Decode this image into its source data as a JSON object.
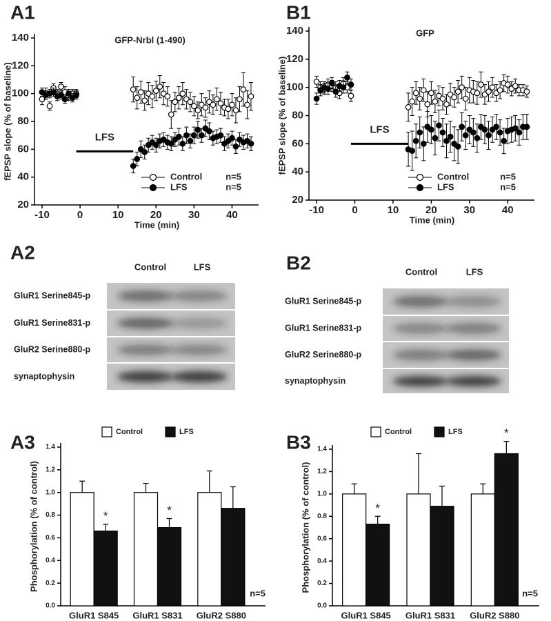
{
  "chart_data": [
    {
      "type": "scatter",
      "panel": "A1",
      "title": "GFP-Nrbl (1-490)",
      "x_label": "Time (min)",
      "y_label": "fEPSP slope (% of baseline)",
      "x": [
        -10,
        -9,
        -8,
        -7,
        -6,
        -5,
        -4,
        -3,
        -2,
        -1,
        14,
        15,
        16,
        17,
        18,
        19,
        20,
        21,
        22,
        23,
        24,
        25,
        26,
        27,
        28,
        29,
        30,
        31,
        32,
        33,
        34,
        35,
        36,
        37,
        38,
        39,
        40,
        41,
        42,
        43,
        44,
        45
      ],
      "series": [
        {
          "name": "Control",
          "n_label": "n=5",
          "color": "#ffffff",
          "values": [
            96,
            100,
            91,
            104,
            100,
            105,
            101,
            98,
            100,
            100,
            103,
            97,
            101,
            95,
            100,
            98,
            102,
            105,
            100,
            98,
            85,
            94,
            97,
            100,
            96,
            94,
            91,
            88,
            92,
            90,
            94,
            92,
            96,
            93,
            90,
            89,
            92,
            88,
            96,
            103,
            92,
            98
          ],
          "errors": [
            4,
            4,
            3,
            3,
            3,
            3,
            4,
            3,
            3,
            3,
            9,
            8,
            8,
            7,
            8,
            8,
            7,
            8,
            8,
            7,
            10,
            7,
            8,
            8,
            7,
            7,
            7,
            6,
            8,
            7,
            8,
            7,
            8,
            8,
            6,
            7,
            8,
            9,
            9,
            12,
            10,
            10
          ]
        },
        {
          "name": "LFS",
          "n_label": "n=5",
          "color": "#000000",
          "values": [
            101,
            99,
            100,
            101,
            98,
            99,
            96,
            100,
            97,
            99,
            48,
            53,
            60,
            58,
            63,
            65,
            63,
            66,
            67,
            65,
            64,
            67,
            69,
            64,
            70,
            66,
            70,
            74,
            70,
            75,
            73,
            68,
            69,
            70,
            64,
            66,
            68,
            62,
            67,
            65,
            66,
            64
          ],
          "errors": [
            3,
            3,
            3,
            3,
            3,
            3,
            3,
            3,
            3,
            3,
            5,
            5,
            6,
            5,
            5,
            5,
            5,
            5,
            5,
            5,
            5,
            5,
            6,
            5,
            6,
            5,
            6,
            6,
            5,
            6,
            6,
            5,
            5,
            5,
            5,
            5,
            5,
            5,
            5,
            5,
            5,
            5
          ]
        }
      ],
      "annotation": {
        "text": "LFS",
        "x0": -1,
        "x1": 14,
        "y": 58.5
      },
      "xlim": [
        -12,
        47
      ],
      "xticks": [
        -10,
        0,
        10,
        20,
        30,
        40
      ],
      "ylim": [
        20,
        140
      ],
      "yticks": [
        20,
        40,
        60,
        80,
        100,
        120,
        140
      ]
    },
    {
      "type": "scatter",
      "panel": "B1",
      "title": "GFP",
      "x_label": "Time (min)",
      "y_label": "fEPSP slope (% of baseline)",
      "x": [
        -10,
        -9,
        -8,
        -7,
        -6,
        -5,
        -4,
        -3,
        -2,
        -1,
        14,
        15,
        16,
        17,
        18,
        19,
        20,
        21,
        22,
        23,
        24,
        25,
        26,
        27,
        28,
        29,
        30,
        31,
        32,
        33,
        34,
        35,
        36,
        37,
        38,
        39,
        40,
        41,
        42,
        43,
        44,
        45
      ],
      "series": [
        {
          "name": "Control",
          "n_label": "n=5",
          "color": "#ffffff",
          "values": [
            104,
            100,
            99,
            102,
            101,
            100,
            96,
            103,
            100,
            94,
            86,
            90,
            96,
            92,
            98,
            88,
            96,
            90,
            94,
            92,
            88,
            95,
            93,
            97,
            100,
            92,
            98,
            97,
            96,
            102,
            95,
            97,
            100,
            96,
            98,
            103,
            102,
            99,
            101,
            98,
            98,
            97
          ],
          "errors": [
            4,
            4,
            4,
            4,
            4,
            4,
            4,
            4,
            4,
            4,
            10,
            10,
            8,
            8,
            8,
            9,
            8,
            8,
            7,
            8,
            7,
            8,
            7,
            8,
            8,
            8,
            9,
            8,
            8,
            9,
            7,
            7,
            7,
            6,
            6,
            6,
            6,
            5,
            5,
            4,
            4,
            4
          ]
        },
        {
          "name": "LFS",
          "n_label": "n=5",
          "color": "#000000",
          "values": [
            92,
            98,
            100,
            99,
            103,
            97,
            101,
            100,
            107,
            102,
            56,
            55,
            62,
            68,
            60,
            72,
            70,
            64,
            73,
            68,
            62,
            65,
            60,
            58,
            72,
            66,
            70,
            68,
            64,
            72,
            70,
            66,
            70,
            72,
            68,
            62,
            69,
            70,
            71,
            68,
            72,
            72
          ],
          "errors": [
            4,
            4,
            4,
            4,
            4,
            4,
            4,
            4,
            4,
            4,
            12,
            14,
            12,
            11,
            12,
            11,
            10,
            12,
            11,
            10,
            12,
            11,
            12,
            12,
            10,
            10,
            10,
            10,
            10,
            9,
            10,
            10,
            9,
            9,
            9,
            9,
            9,
            9,
            9,
            9,
            9,
            9
          ]
        }
      ],
      "annotation": {
        "text": "LFS",
        "x0": -1,
        "x1": 14,
        "y": 60
      },
      "xlim": [
        -12,
        47
      ],
      "xticks": [
        -10,
        0,
        10,
        20,
        30,
        40
      ],
      "ylim": [
        20,
        140
      ],
      "yticks": [
        20,
        40,
        60,
        80,
        100,
        120,
        140
      ]
    },
    {
      "type": "bar",
      "panel": "A3",
      "y_label": "Phosphorylation (% of control)",
      "note": "n=5",
      "categories": [
        "GluR1 S845",
        "GluR1 S831",
        "GluR2 S880"
      ],
      "series": [
        {
          "name": "Control",
          "color": "#ffffff",
          "values": [
            1.0,
            1.0,
            1.0
          ],
          "errors": [
            0.1,
            0.08,
            0.19
          ],
          "significance": [
            null,
            null,
            null
          ]
        },
        {
          "name": "LFS",
          "color": "#111111",
          "values": [
            0.66,
            0.69,
            0.86
          ],
          "errors": [
            0.06,
            0.08,
            0.19
          ],
          "significance": [
            "*",
            "*",
            null
          ]
        }
      ],
      "ylim": [
        0,
        1.4
      ],
      "yticks": [
        {
          "value": 0,
          "label": "0.0"
        },
        0.2,
        0.4,
        0.6,
        0.8,
        {
          "value": 1,
          "label": "1.0"
        },
        1.2,
        1.4
      ]
    },
    {
      "type": "bar",
      "panel": "B3",
      "y_label": "Phosphorylation (% of control)",
      "note": "n=5",
      "categories": [
        "GluR1 S845",
        "GluR1 S831",
        "GluR2 S880"
      ],
      "series": [
        {
          "name": "Control",
          "color": "#ffffff",
          "values": [
            1.0,
            1.0,
            1.0
          ],
          "errors": [
            0.09,
            0.36,
            0.09
          ],
          "significance": [
            null,
            null,
            null
          ]
        },
        {
          "name": "LFS",
          "color": "#111111",
          "values": [
            0.73,
            0.89,
            1.36
          ],
          "errors": [
            0.07,
            0.18,
            0.11
          ],
          "significance": [
            "*",
            null,
            "*"
          ]
        }
      ],
      "ylim": [
        0,
        1.4
      ],
      "yticks": [
        {
          "value": 0,
          "label": "0.0"
        },
        0.2,
        0.4,
        0.6,
        0.8,
        {
          "value": 1,
          "label": "1.0"
        },
        1.2,
        1.4
      ]
    }
  ],
  "blots": [
    {
      "panel": "A2",
      "columns": [
        "Control",
        "LFS"
      ],
      "rows": [
        "GluR1 Serine845-p",
        "GluR1 Serine831-p",
        "GluR2 Serine880-p",
        "synaptophysin"
      ]
    },
    {
      "panel": "B2",
      "columns": [
        "Control",
        "LFS"
      ],
      "rows": [
        "GluR1 Serine845-p",
        "GluR1 Serine831-p",
        "GluR2 Serine880-p",
        "synaptophysin"
      ]
    }
  ]
}
